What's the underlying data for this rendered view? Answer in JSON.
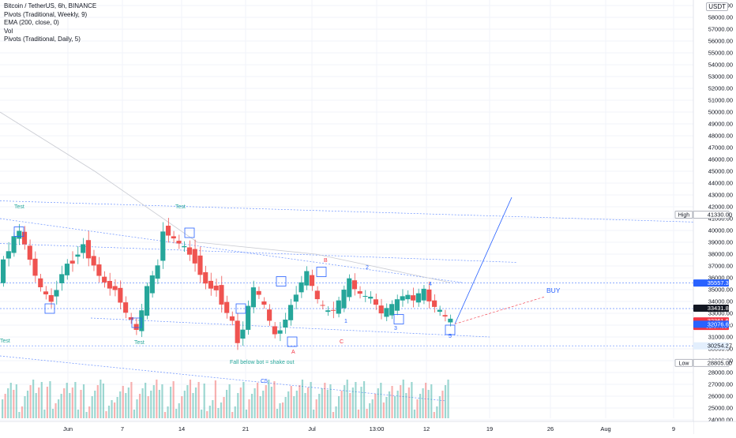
{
  "legend": {
    "title": "Bitcoin / TetherUS, 6h, BINANCE",
    "indicators": [
      "Pivots (Traditional, Weekly, 9)",
      "EMA (200, close, 0)",
      "Vol",
      "Pivots (Traditional, Daily, 5)"
    ]
  },
  "currency": "USDT",
  "colors": {
    "up": "#26a69a",
    "down": "#ef5350",
    "trend": "#2962ff",
    "text": "#131722",
    "axis": "#787b86",
    "grid": "#f0f3fa",
    "red": "#f23645",
    "wave_blue": "#2962ff"
  },
  "chart_data": {
    "type": "candlestick",
    "symbol": "Bitcoin / TetherUS",
    "timeframe": "6h",
    "exchange": "BINANCE",
    "y_axis": {
      "min": 24000,
      "max": 59000,
      "step": 1000,
      "unit": "USDT"
    },
    "y_ticks": [
      "59000.00",
      "58000.00",
      "57000.00",
      "56000.00",
      "55000.00",
      "54000.00",
      "53000.00",
      "52000.00",
      "51000.00",
      "50000.00",
      "49000.00",
      "48000.00",
      "47000.00",
      "46000.00",
      "45000.00",
      "44000.00",
      "43000.00",
      "42000.00",
      "41000.00",
      "40000.00",
      "39000.00",
      "38000.00",
      "37000.00",
      "36000.00",
      "35000.00",
      "34000.00",
      "33000.00",
      "32000.00",
      "31000.00",
      "30000.00",
      "29000.00",
      "28000.00",
      "27000.00",
      "26000.00",
      "25000.00",
      "24000.00"
    ],
    "x_ticks": [
      "Jun",
      "7",
      "14",
      "21",
      "Jul",
      "13:00",
      "12",
      "19",
      "26",
      "Aug",
      "9"
    ],
    "price_labels": [
      {
        "name": "high",
        "label": "High",
        "value": "41330.00",
        "price": 41330,
        "style": "badge"
      },
      {
        "name": "res",
        "label": "",
        "value": "35557.33",
        "price": 35557,
        "style": "blue"
      },
      {
        "name": "prev",
        "label": "",
        "value": "33431.89",
        "price": 33432,
        "style": "dark"
      },
      {
        "name": "last",
        "label": "",
        "value": "32361.64",
        "price": 32362,
        "style": "red",
        "sub": "02:37:58"
      },
      {
        "name": "ema",
        "label": "",
        "value": "32076.64",
        "price": 32077,
        "style": "blue"
      },
      {
        "name": "sup",
        "label": "",
        "value": "30254.27",
        "price": 30254,
        "style": "lightblue"
      },
      {
        "name": "low",
        "label": "Low",
        "value": "28805.00",
        "price": 28805,
        "style": "badge"
      }
    ],
    "annotations": [
      {
        "text": "Test",
        "color": "#26a69a"
      },
      {
        "text": "Test",
        "color": "#26a69a"
      },
      {
        "text": "Test",
        "color": "#26a69a"
      },
      {
        "text": "Test",
        "color": "#26a69a"
      },
      {
        "text": "Fall below bot = shake out",
        "color": "#26a69a"
      },
      {
        "text": "BUY",
        "color": "#2962ff"
      },
      {
        "text": "A",
        "color": "#f23645"
      },
      {
        "text": "B",
        "color": "#f23645"
      },
      {
        "text": "C",
        "color": "#f23645"
      },
      {
        "text": "1",
        "color": "#2962ff"
      },
      {
        "text": "2",
        "color": "#2962ff"
      },
      {
        "text": "3",
        "color": "#2962ff"
      },
      {
        "text": "4",
        "color": "#2962ff"
      },
      {
        "text": "5",
        "color": "#2962ff"
      },
      {
        "text": "C5",
        "color": "#2962ff"
      }
    ],
    "price_path": [
      [
        0,
        36000
      ],
      [
        2,
        38500
      ],
      [
        4,
        40000
      ],
      [
        6,
        37500
      ],
      [
        8,
        35000
      ],
      [
        10,
        34000
      ],
      [
        12,
        36500
      ],
      [
        14,
        37500
      ],
      [
        16,
        38800
      ],
      [
        18,
        37000
      ],
      [
        20,
        35500
      ],
      [
        22,
        35000
      ],
      [
        24,
        33000
      ],
      [
        26,
        31500
      ],
      [
        28,
        35000
      ],
      [
        30,
        37000
      ],
      [
        31,
        40200
      ],
      [
        33,
        39200
      ],
      [
        35,
        38500
      ],
      [
        37,
        37500
      ],
      [
        39,
        35500
      ],
      [
        41,
        35000
      ],
      [
        43,
        33000
      ],
      [
        44,
        32200
      ],
      [
        45,
        30600
      ],
      [
        46,
        31800
      ],
      [
        48,
        35200
      ],
      [
        50,
        33500
      ],
      [
        52,
        31000
      ],
      [
        54,
        32500
      ],
      [
        56,
        34800
      ],
      [
        58,
        36400
      ],
      [
        60,
        34000
      ],
      [
        62,
        33000
      ],
      [
        64,
        33800
      ],
      [
        66,
        35700
      ],
      [
        68,
        34500
      ],
      [
        70,
        34300
      ],
      [
        72,
        33000
      ],
      [
        74,
        33500
      ],
      [
        76,
        34500
      ],
      [
        78,
        34200
      ],
      [
        80,
        34800
      ],
      [
        82,
        33500
      ],
      [
        84,
        32600
      ],
      [
        85,
        32300
      ]
    ],
    "volume_profile": [
      0.4,
      0.7,
      0.5,
      0.6,
      0.8,
      0.4,
      0.6,
      0.7,
      0.5,
      0.9,
      0.3,
      0.6,
      0.4,
      0.5,
      0.7,
      0.8,
      0.5,
      0.6,
      0.9,
      1.0,
      0.7,
      0.6,
      0.4,
      0.5,
      0.8,
      0.3,
      0.5,
      0.6,
      0.4,
      0.7,
      0.5,
      0.6,
      0.8,
      0.4,
      0.3,
      0.5,
      0.6,
      0.4,
      0.7,
      0.5
    ]
  }
}
